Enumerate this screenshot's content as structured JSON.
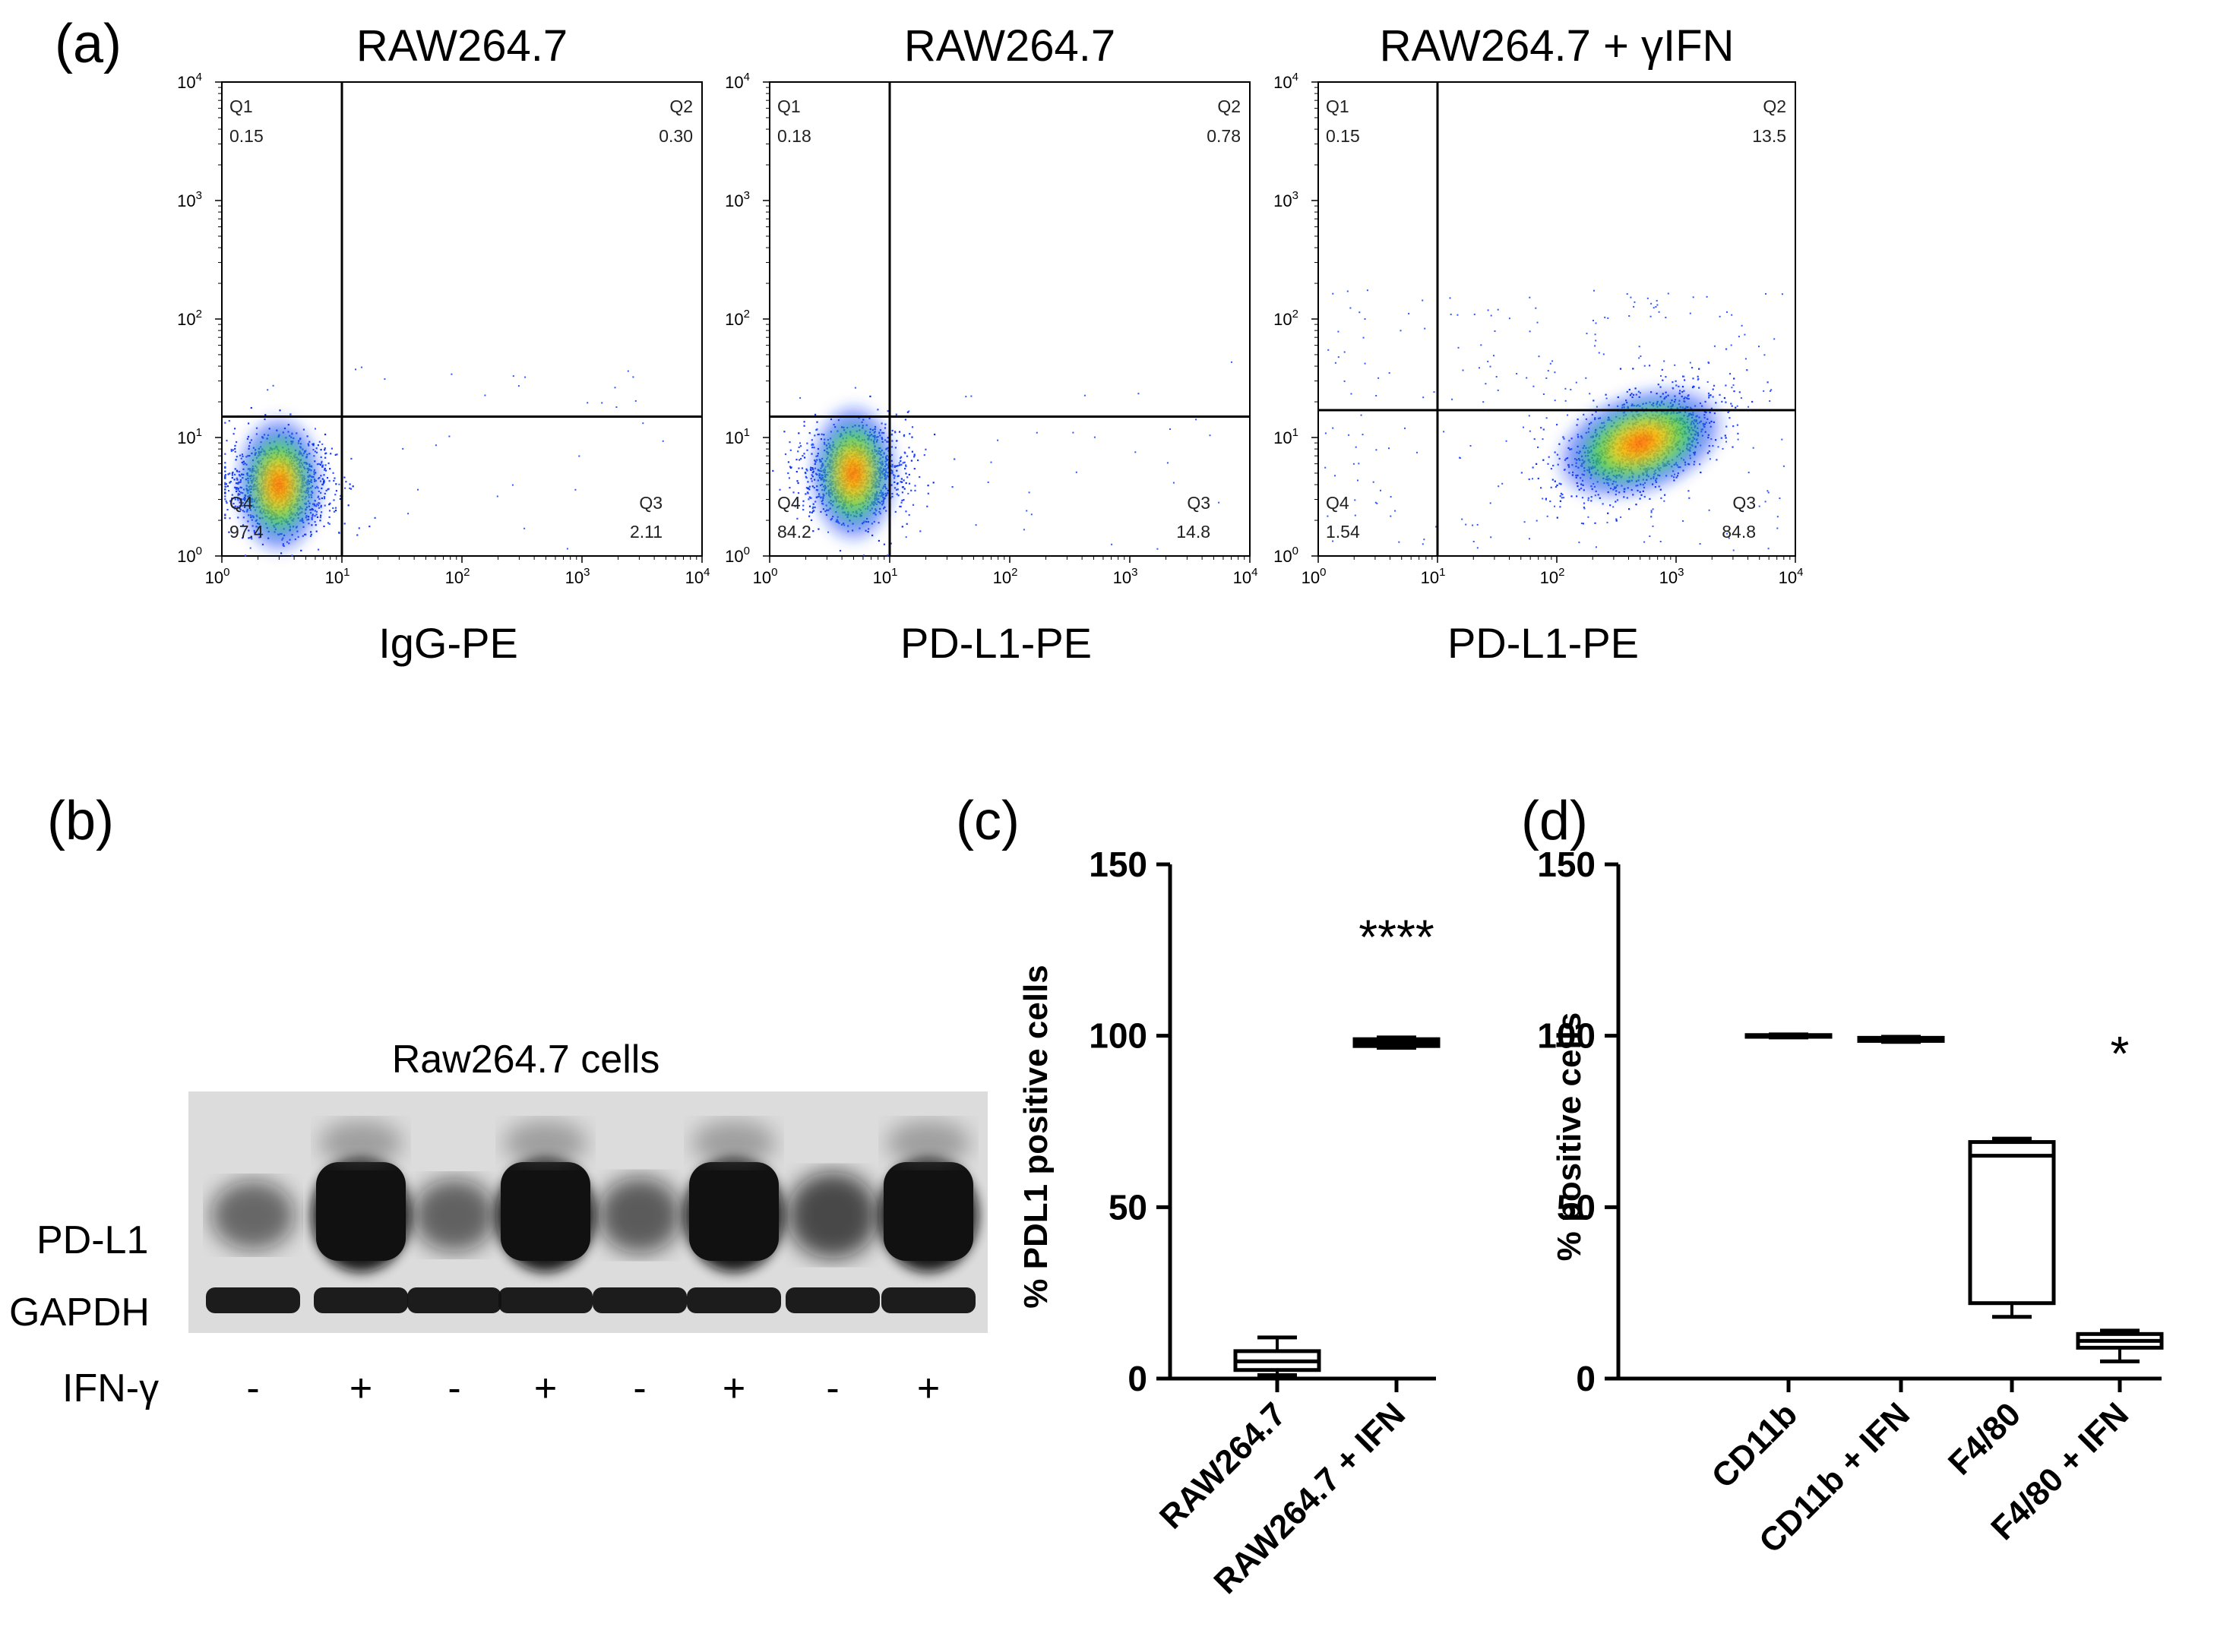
{
  "panel_labels": {
    "a": "(a)",
    "b": "(b)",
    "c": "(c)",
    "d": "(d)"
  },
  "chart_data": [
    {
      "panel": "a1",
      "type": "scatter",
      "title": "RAW264.7",
      "xlabel": "IgG-PE",
      "ylabel": "",
      "xscale": "log",
      "yscale": "log",
      "xlim": [
        1,
        10000
      ],
      "ylim": [
        1,
        10000
      ],
      "gate": {
        "x": 10,
        "y": 15
      },
      "quadrants": {
        "q1": {
          "name": "Q1",
          "value": "0.15"
        },
        "q2": {
          "name": "Q2",
          "value": "0.30"
        },
        "q3": {
          "name": "Q3",
          "value": "2.11"
        },
        "q4": {
          "name": "Q4",
          "value": "97.4"
        }
      },
      "population": {
        "center_x": 3,
        "center_y": 4
      }
    },
    {
      "panel": "a2",
      "type": "scatter",
      "title": "RAW264.7",
      "xlabel": "PD-L1-PE",
      "ylabel": "",
      "xscale": "log",
      "yscale": "log",
      "xlim": [
        1,
        10000
      ],
      "ylim": [
        1,
        10000
      ],
      "gate": {
        "x": 10,
        "y": 15
      },
      "quadrants": {
        "q1": {
          "name": "Q1",
          "value": "0.18"
        },
        "q2": {
          "name": "Q2",
          "value": "0.78"
        },
        "q3": {
          "name": "Q3",
          "value": "14.8"
        },
        "q4": {
          "name": "Q4",
          "value": "84.2"
        }
      },
      "population": {
        "center_x": 5,
        "center_y": 5
      }
    },
    {
      "panel": "a3",
      "type": "scatter",
      "title": "RAW264.7 + γIFN",
      "xlabel": "PD-L1-PE",
      "ylabel": "",
      "xscale": "log",
      "yscale": "log",
      "xlim": [
        1,
        10000
      ],
      "ylim": [
        1,
        10000
      ],
      "gate": {
        "x": 10,
        "y": 17
      },
      "quadrants": {
        "q1": {
          "name": "Q1",
          "value": "0.15"
        },
        "q2": {
          "name": "Q2",
          "value": "13.5"
        },
        "q3": {
          "name": "Q3",
          "value": "84.8"
        },
        "q4": {
          "name": "Q4",
          "value": "1.54"
        }
      },
      "population": {
        "center_x": 500,
        "center_y": 9
      }
    },
    {
      "panel": "c",
      "type": "box",
      "title": "",
      "ylabel": "% PDL1 positive cells",
      "ylim": [
        0,
        150
      ],
      "yticks": [
        0,
        50,
        100,
        150
      ],
      "categories": [
        "RAW264.7",
        "RAW264.7 + IFN"
      ],
      "boxes": [
        {
          "min": 1,
          "q1": 2.5,
          "median": 5,
          "q3": 8,
          "max": 12
        },
        {
          "min": 96.5,
          "q1": 97,
          "median": 98,
          "q3": 99,
          "max": 99.5
        }
      ],
      "annotation": {
        "text": "****",
        "category": 1,
        "y": 124
      }
    },
    {
      "panel": "d",
      "type": "box",
      "title": "",
      "ylabel": "% positive cells",
      "ylim": [
        0,
        150
      ],
      "yticks": [
        0,
        50,
        100,
        150
      ],
      "categories": [
        "CD11b",
        "CD11b + IFN",
        "F4/80",
        "F4/80 + IFN"
      ],
      "boxes": [
        {
          "min": 99.5,
          "q1": 99.7,
          "median": 100,
          "q3": 100.2,
          "max": 100.4
        },
        {
          "min": 98.2,
          "q1": 98.5,
          "median": 99,
          "q3": 99.4,
          "max": 99.7
        },
        {
          "min": 18,
          "q1": 22,
          "median": 65,
          "q3": 69,
          "max": 70
        },
        {
          "min": 5,
          "q1": 9,
          "median": 11,
          "q3": 13,
          "max": 14
        }
      ],
      "annotation": {
        "text": "*",
        "category": 3,
        "y": 90
      }
    }
  ],
  "blot": {
    "title": "Raw264.7 cells",
    "rows": [
      "PD-L1",
      "GAPDH"
    ],
    "treatment_label": "IFN-γ",
    "lanes": [
      "-",
      "+",
      "-",
      "+",
      "-",
      "+",
      "-",
      "+"
    ],
    "pdl1_band_intensity": [
      0.35,
      1.0,
      0.4,
      1.0,
      0.45,
      1.0,
      0.6,
      1.0
    ],
    "gapdh_band_intensity": [
      1,
      1,
      1,
      1,
      1,
      1,
      1,
      1
    ],
    "colors": {
      "background": "#dcdcdc",
      "band": "#111111"
    }
  },
  "colors": {
    "density_low": "#0000ff",
    "density_mid": "#00cc44",
    "density_high": "#ff2a00"
  }
}
